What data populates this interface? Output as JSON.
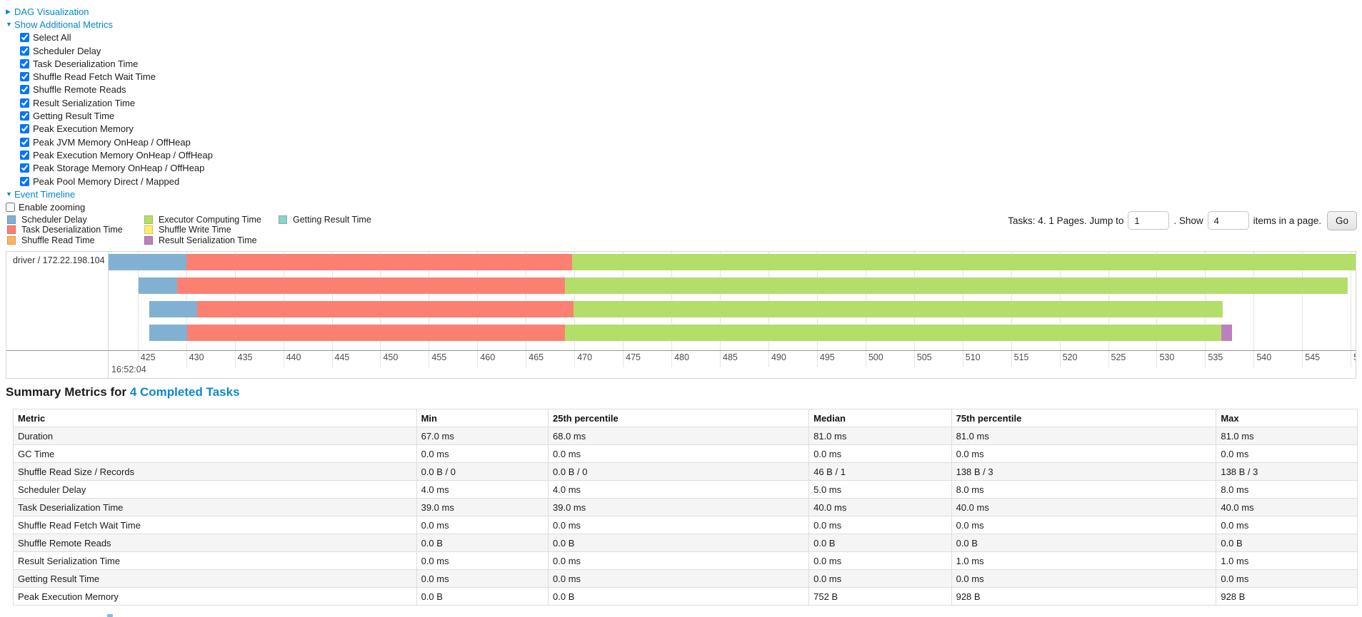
{
  "colors": {
    "link": "#0088cc"
  },
  "controls": {
    "dag_link": "DAG Visualization",
    "metrics_link": "Show Additional Metrics",
    "timeline_link": "Event Timeline",
    "collapsed_arrow": "▶",
    "expanded_arrow": "▼",
    "enable_zooming": {
      "label": "Enable zooming",
      "checked": false
    },
    "metric_checkboxes": [
      {
        "label": "Select All",
        "checked": true
      },
      {
        "label": "Scheduler Delay",
        "checked": true
      },
      {
        "label": "Task Deserialization Time",
        "checked": true
      },
      {
        "label": "Shuffle Read Fetch Wait Time",
        "checked": true
      },
      {
        "label": "Shuffle Remote Reads",
        "checked": true
      },
      {
        "label": "Result Serialization Time",
        "checked": true
      },
      {
        "label": "Getting Result Time",
        "checked": true
      },
      {
        "label": "Peak Execution Memory",
        "checked": true
      },
      {
        "label": "Peak JVM Memory OnHeap / OffHeap",
        "checked": true
      },
      {
        "label": "Peak Execution Memory OnHeap / OffHeap",
        "checked": true
      },
      {
        "label": "Peak Storage Memory OnHeap / OffHeap",
        "checked": true
      },
      {
        "label": "Peak Pool Memory Direct / Mapped",
        "checked": true
      }
    ]
  },
  "pagination": {
    "prefix": "Tasks: 4. 1 Pages. Jump to",
    "jump_value": "1",
    "mid": ". Show",
    "show_value": "4",
    "suffix": "items in a page.",
    "go_label": "Go"
  },
  "chart_data": {
    "type": "timeline",
    "group_label": "driver / 172.22.198.104",
    "time_label": "16:52:04",
    "axis": {
      "min": 422.0,
      "max": 550.5,
      "tick_start": 425,
      "tick_end": 550,
      "tick_step": 5
    },
    "legend_columns": [
      [
        {
          "label": "Scheduler Delay",
          "color": "#80B1D3"
        },
        {
          "label": "Task Deserialization Time",
          "color": "#FB8072"
        },
        {
          "label": "Shuffle Read Time",
          "color": "#FDB462"
        }
      ],
      [
        {
          "label": "Executor Computing Time",
          "color": "#B3DE69"
        },
        {
          "label": "Shuffle Write Time",
          "color": "#FFED6F"
        },
        {
          "label": "Result Serialization Time",
          "color": "#BC80BD"
        }
      ],
      [
        {
          "label": "Getting Result Time",
          "color": "#8DD3C7"
        }
      ]
    ],
    "tasks": [
      {
        "segments": [
          {
            "name": "scheduler-delay",
            "color": "#80B1D3",
            "start": 422.0,
            "end": 430.0
          },
          {
            "name": "task-deserialization",
            "color": "#FB8072",
            "start": 430.0,
            "end": 469.8
          },
          {
            "name": "executor-computing",
            "color": "#B3DE69",
            "start": 469.8,
            "end": 550.5
          }
        ]
      },
      {
        "segments": [
          {
            "name": "scheduler-delay",
            "color": "#80B1D3",
            "start": 425.1,
            "end": 429.1
          },
          {
            "name": "task-deserialization",
            "color": "#FB8072",
            "start": 429.1,
            "end": 469.0
          },
          {
            "name": "executor-computing",
            "color": "#B3DE69",
            "start": 469.0,
            "end": 549.7
          }
        ]
      },
      {
        "segments": [
          {
            "name": "scheduler-delay",
            "color": "#80B1D3",
            "start": 426.2,
            "end": 431.1
          },
          {
            "name": "task-deserialization",
            "color": "#FB8072",
            "start": 431.1,
            "end": 469.9
          },
          {
            "name": "executor-computing",
            "color": "#B3DE69",
            "start": 469.9,
            "end": 536.8
          }
        ]
      },
      {
        "segments": [
          {
            "name": "scheduler-delay",
            "color": "#80B1D3",
            "start": 426.2,
            "end": 430.1
          },
          {
            "name": "task-deserialization",
            "color": "#FB8072",
            "start": 430.1,
            "end": 469.0
          },
          {
            "name": "executor-computing",
            "color": "#B3DE69",
            "start": 469.0,
            "end": 536.7
          },
          {
            "name": "result-serialization",
            "color": "#BC80BD",
            "start": 536.7,
            "end": 537.8
          }
        ]
      }
    ]
  },
  "summary": {
    "title_prefix": "Summary Metrics for ",
    "title_link": "4 Completed Tasks",
    "columns": [
      "Metric",
      "Min",
      "25th percentile",
      "Median",
      "75th percentile",
      "Max"
    ],
    "col_widths": [
      "30%",
      "9.8%",
      "19.4%",
      "10.6%",
      "19.7%",
      "10.5%"
    ],
    "rows": [
      [
        "Duration",
        "67.0 ms",
        "68.0 ms",
        "81.0 ms",
        "81.0 ms",
        "81.0 ms"
      ],
      [
        "GC Time",
        "0.0 ms",
        "0.0 ms",
        "0.0 ms",
        "0.0 ms",
        "0.0 ms"
      ],
      [
        "Shuffle Read Size / Records",
        "0.0 B / 0",
        "0.0 B / 0",
        "46 B / 1",
        "138 B / 3",
        "138 B / 3"
      ],
      [
        "Scheduler Delay",
        "4.0 ms",
        "4.0 ms",
        "5.0 ms",
        "8.0 ms",
        "8.0 ms"
      ],
      [
        "Task Deserialization Time",
        "39.0 ms",
        "39.0 ms",
        "40.0 ms",
        "40.0 ms",
        "40.0 ms"
      ],
      [
        "Shuffle Read Fetch Wait Time",
        "0.0 ms",
        "0.0 ms",
        "0.0 ms",
        "0.0 ms",
        "0.0 ms"
      ],
      [
        "Shuffle Remote Reads",
        "0.0 B",
        "0.0 B",
        "0.0 B",
        "0.0 B",
        "0.0 B"
      ],
      [
        "Result Serialization Time",
        "0.0 ms",
        "0.0 ms",
        "0.0 ms",
        "1.0 ms",
        "1.0 ms"
      ],
      [
        "Getting Result Time",
        "0.0 ms",
        "0.0 ms",
        "0.0 ms",
        "0.0 ms",
        "0.0 ms"
      ],
      [
        "Peak Execution Memory",
        "0.0 B",
        "0.0 B",
        "752 B",
        "928 B",
        "928 B"
      ]
    ]
  }
}
